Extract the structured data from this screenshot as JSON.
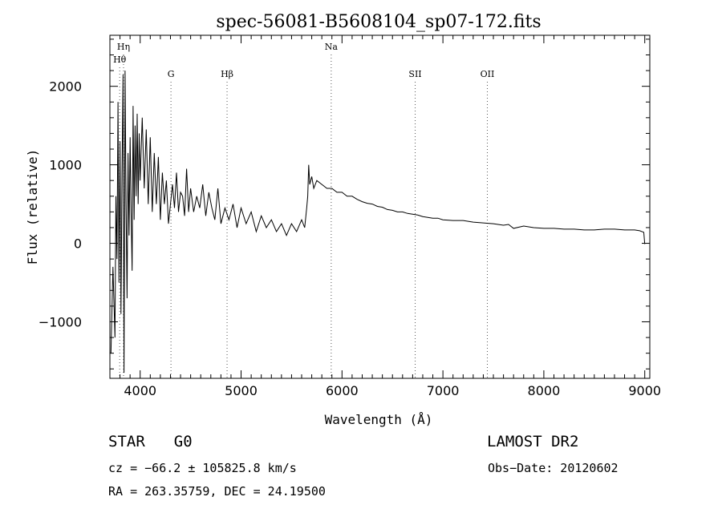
{
  "chart_data": {
    "type": "line",
    "title": "spec-56081-B5608104_sp07-172.fits",
    "xlabel": "Wavelength (Å)",
    "ylabel": "Flux (relative)",
    "xlim": [
      3700,
      9050
    ],
    "ylim": [
      -1720,
      2650
    ],
    "xticks": [
      4000,
      5000,
      6000,
      7000,
      8000,
      9000
    ],
    "yticks": [
      -1000,
      0,
      1000,
      2000
    ],
    "ytick_labels": [
      "−1000",
      "0",
      "1000",
      "2000"
    ],
    "grid": false,
    "series": [
      {
        "x": [
          3710,
          3730,
          3750,
          3760,
          3770,
          3780,
          3790,
          3800,
          3810,
          3820,
          3830,
          3840,
          3850,
          3860,
          3870,
          3880,
          3890,
          3900,
          3910,
          3920,
          3930,
          3940,
          3950,
          3960,
          3970,
          3980,
          3990,
          4000,
          4020,
          4040,
          4060,
          4080,
          4100,
          4120,
          4140,
          4160,
          4180,
          4200,
          4220,
          4240,
          4260,
          4280,
          4300,
          4320,
          4340,
          4360,
          4380,
          4400,
          4420,
          4440,
          4460,
          4480,
          4500,
          4530,
          4560,
          4590,
          4620,
          4650,
          4680,
          4710,
          4740,
          4770,
          4800,
          4840,
          4880,
          4920,
          4960,
          5000,
          5050,
          5100,
          5150,
          5200,
          5250,
          5300,
          5350,
          5400,
          5450,
          5500,
          5550,
          5600,
          5630,
          5650,
          5660,
          5670,
          5680,
          5700,
          5720,
          5750,
          5800,
          5850,
          5900,
          5950,
          6000,
          6050,
          6100,
          6150,
          6200,
          6250,
          6300,
          6350,
          6400,
          6450,
          6500,
          6550,
          6600,
          6650,
          6700,
          6750,
          6800,
          6850,
          6900,
          6950,
          7000,
          7100,
          7200,
          7300,
          7400,
          7500,
          7600,
          7650,
          7700,
          7800,
          7900,
          8000,
          8100,
          8200,
          8300,
          8400,
          8500,
          8600,
          8700,
          8800,
          8900,
          8950,
          8990,
          9000
        ],
        "values": [
          -1400,
          -300,
          -1200,
          600,
          -200,
          1800,
          -500,
          1300,
          -900,
          900,
          2150,
          -1650,
          2200,
          500,
          -700,
          1150,
          100,
          1350,
          400,
          -350,
          1750,
          300,
          1500,
          600,
          1650,
          500,
          1400,
          800,
          1600,
          700,
          1450,
          500,
          1350,
          400,
          1150,
          500,
          1100,
          300,
          900,
          500,
          800,
          250,
          500,
          750,
          450,
          900,
          400,
          650,
          600,
          350,
          950,
          400,
          700,
          400,
          600,
          450,
          750,
          350,
          650,
          450,
          300,
          700,
          250,
          450,
          300,
          500,
          200,
          450,
          250,
          400,
          150,
          350,
          200,
          300,
          150,
          250,
          100,
          250,
          150,
          300,
          200,
          450,
          600,
          1000,
          750,
          850,
          700,
          800,
          750,
          700,
          700,
          650,
          650,
          600,
          600,
          560,
          530,
          510,
          500,
          470,
          460,
          430,
          420,
          400,
          400,
          380,
          370,
          360,
          340,
          330,
          320,
          320,
          300,
          290,
          290,
          270,
          260,
          250,
          230,
          240,
          190,
          220,
          200,
          190,
          190,
          180,
          180,
          170,
          170,
          180,
          180,
          170,
          170,
          160,
          140,
          -10
        ]
      }
    ],
    "line_markers": [
      {
        "label": "Hη",
        "x": 3835,
        "row": 0
      },
      {
        "label": "Hθ",
        "x": 3797,
        "row": 1
      },
      {
        "label": "G",
        "x": 4305,
        "row": 2
      },
      {
        "label": "Hβ",
        "x": 4861,
        "row": 2
      },
      {
        "label": "Na",
        "x": 5893,
        "row": 0
      },
      {
        "label": "SII",
        "x": 6725,
        "row": 2
      },
      {
        "label": "OII",
        "x": 7440,
        "row": 2
      }
    ]
  },
  "footer": {
    "object_type": "STAR",
    "subclass": "G0",
    "survey": "LAMOST DR2",
    "redshift_text": "cz = −66.2 ± 105825.8 km/s",
    "obs_date_text": "Obs−Date: 20120602",
    "coords_text": "RA = 263.35759, DEC =  24.19500"
  }
}
